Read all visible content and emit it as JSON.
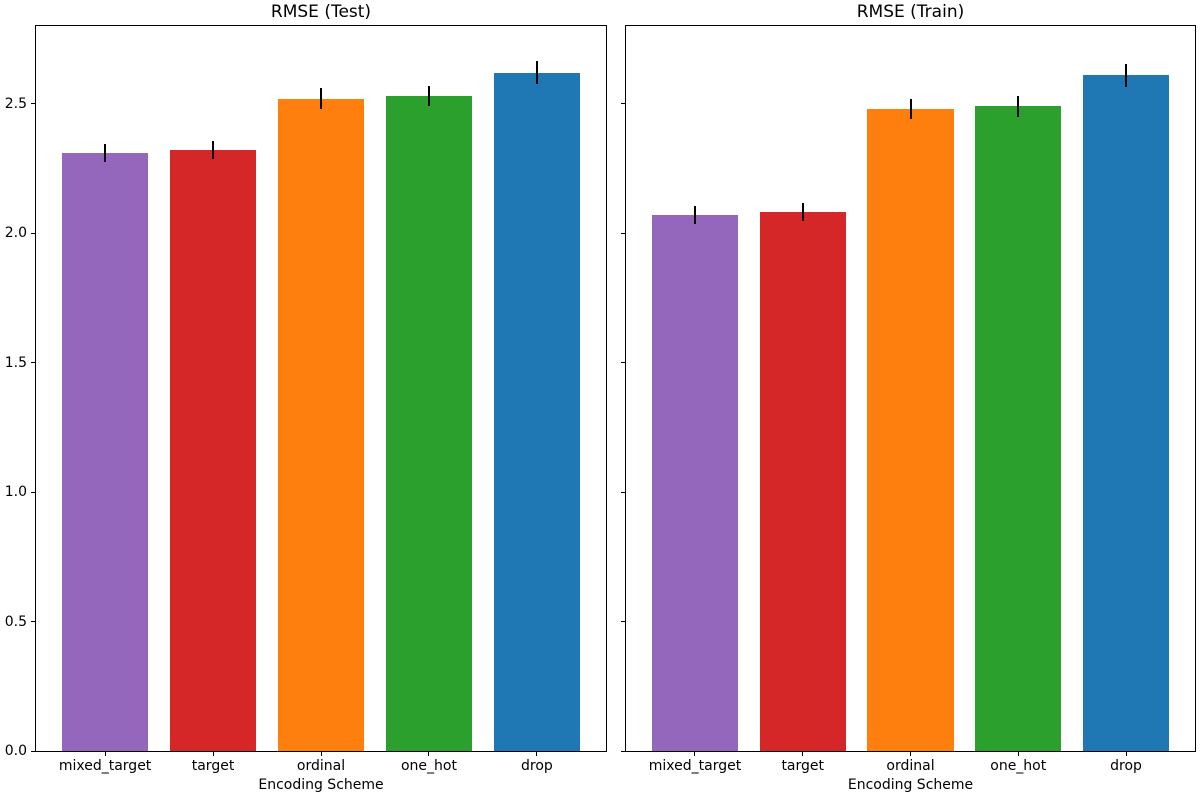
{
  "figure": {
    "background": "#ffffff",
    "spine_color": "#000000",
    "errorbar_color": "#000000",
    "bar_colors": [
      "#9467bd",
      "#d62728",
      "#ff7f0e",
      "#2ca02c",
      "#1f77b4"
    ]
  },
  "chart_data": [
    {
      "type": "bar",
      "title": "RMSE (Test)",
      "xlabel": "Encoding Scheme",
      "ylabel": "",
      "categories": [
        "mixed_target",
        "target",
        "ordinal",
        "one_hot",
        "drop"
      ],
      "values": [
        2.31,
        2.32,
        2.52,
        2.53,
        2.62
      ],
      "errors": [
        0.035,
        0.035,
        0.04,
        0.04,
        0.045
      ],
      "bar_colors": [
        "#9467bd",
        "#d62728",
        "#ff7f0e",
        "#2ca02c",
        "#1f77b4"
      ],
      "ylim": [
        0,
        2.8
      ],
      "xlim": [
        -0.64,
        4.64
      ],
      "bar_width": 0.8,
      "yticks": [
        0.0,
        0.5,
        1.0,
        1.5,
        2.0,
        2.5
      ],
      "ytick_labels": [
        "0.0",
        "0.5",
        "1.0",
        "1.5",
        "2.0",
        "2.5"
      ],
      "show_ytick_labels": true,
      "grid": false,
      "legend_position": "none"
    },
    {
      "type": "bar",
      "title": "RMSE (Train)",
      "xlabel": "Encoding Scheme",
      "ylabel": "",
      "categories": [
        "mixed_target",
        "target",
        "ordinal",
        "one_hot",
        "drop"
      ],
      "values": [
        2.07,
        2.08,
        2.48,
        2.49,
        2.61
      ],
      "errors": [
        0.035,
        0.035,
        0.04,
        0.04,
        0.045
      ],
      "bar_colors": [
        "#9467bd",
        "#d62728",
        "#ff7f0e",
        "#2ca02c",
        "#1f77b4"
      ],
      "ylim": [
        0,
        2.8
      ],
      "xlim": [
        -0.64,
        4.64
      ],
      "bar_width": 0.8,
      "yticks": [
        0.0,
        0.5,
        1.0,
        1.5,
        2.0,
        2.5
      ],
      "ytick_labels": [
        "0.0",
        "0.5",
        "1.0",
        "1.5",
        "2.0",
        "2.5"
      ],
      "show_ytick_labels": false,
      "grid": false,
      "legend_position": "none"
    }
  ]
}
